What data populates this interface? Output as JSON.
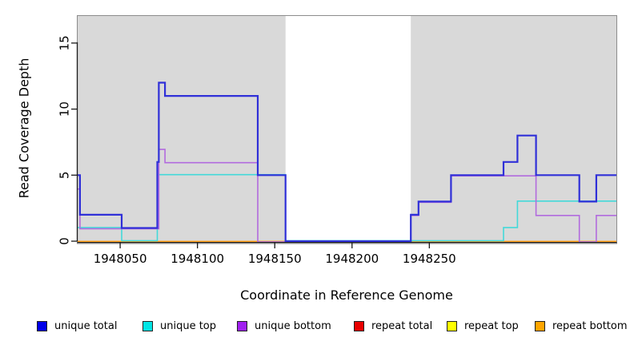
{
  "chart_data": {
    "type": "line",
    "subtype": "step-coverage",
    "title": "",
    "xlabel": "Coordinate in Reference Genome",
    "ylabel": "Read Coverage Depth",
    "xlim": [
      1948022.5,
      1948371
    ],
    "ylim": [
      0,
      17.05
    ],
    "x_ticks": [
      1948050,
      1948100,
      1948150,
      1948200,
      1948250
    ],
    "y_ticks": [
      0,
      5,
      10,
      15
    ],
    "grid": false,
    "legend_position": "bottom",
    "background_color": "#ffffff",
    "shaded_region_color": "#d9d9d9",
    "shaded_regions": [
      {
        "from": 1948022.5,
        "to": 1948157
      },
      {
        "from": 1948238,
        "to": 1948371
      }
    ],
    "series": [
      {
        "name": "repeat top",
        "line_color": "#f2f200",
        "width": 1.4,
        "points": [
          [
            1948022.5,
            0
          ],
          [
            1948371,
            0
          ]
        ]
      },
      {
        "name": "repeat total",
        "line_color": "#e02020",
        "width": 1.4,
        "points": [
          [
            1948022.5,
            0
          ],
          [
            1948371,
            0
          ]
        ]
      },
      {
        "name": "repeat bottom",
        "line_color": "#ffa019",
        "width": 1.7,
        "points": [
          [
            1948022.5,
            0
          ],
          [
            1948371,
            0
          ]
        ]
      },
      {
        "name": "unique top",
        "line_color": "#43d9d9",
        "width": 1.6,
        "points": [
          [
            1948022.5,
            1
          ],
          [
            1948051,
            0
          ],
          [
            1948074,
            5
          ],
          [
            1948157,
            0
          ],
          [
            1948298,
            1
          ],
          [
            1948307,
            3
          ],
          [
            1948371,
            3
          ]
        ]
      },
      {
        "name": "unique bottom",
        "line_color": "#b26bde",
        "width": 1.6,
        "points": [
          [
            1948022.5,
            4
          ],
          [
            1948024,
            1
          ],
          [
            1948075,
            7
          ],
          [
            1948079,
            6
          ],
          [
            1948139,
            0
          ],
          [
            1948238,
            2
          ],
          [
            1948243,
            3
          ],
          [
            1948264,
            5
          ],
          [
            1948319,
            2
          ],
          [
            1948347,
            0
          ],
          [
            1948358,
            2
          ],
          [
            1948371,
            2
          ]
        ]
      },
      {
        "name": "unique total",
        "line_color": "#3030d8",
        "width": 2.2,
        "points": [
          [
            1948022.5,
            5
          ],
          [
            1948024,
            2
          ],
          [
            1948051,
            1
          ],
          [
            1948074,
            6
          ],
          [
            1948075,
            12
          ],
          [
            1948079,
            11
          ],
          [
            1948139,
            5
          ],
          [
            1948157,
            0
          ],
          [
            1948238,
            2
          ],
          [
            1948243,
            3
          ],
          [
            1948264,
            5
          ],
          [
            1948298,
            6
          ],
          [
            1948307,
            8
          ],
          [
            1948319,
            5
          ],
          [
            1948347,
            3
          ],
          [
            1948358,
            5
          ],
          [
            1948371,
            5
          ]
        ]
      }
    ],
    "legend": [
      {
        "label": "unique total",
        "color": "#0000e8"
      },
      {
        "label": "unique top",
        "color": "#00e5e5"
      },
      {
        "label": "unique bottom",
        "color": "#a020f0"
      },
      {
        "label": "repeat total",
        "color": "#e80000"
      },
      {
        "label": "repeat top",
        "color": "#ffff00"
      },
      {
        "label": "repeat bottom",
        "color": "#ffa500"
      }
    ]
  }
}
